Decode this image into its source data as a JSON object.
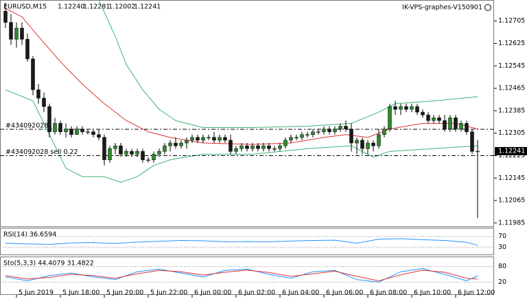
{
  "chart_data": {
    "type": "candlestick",
    "symbol": "EURUSD,M15",
    "header_ohlc": [
      "1.12240",
      "1.12281",
      "1.12002",
      "1.12241"
    ],
    "ea_name": "IK-VPS-graphes-V150901",
    "ylim": [
      1.1197,
      1.1278
    ],
    "yticks": [
      1.12705,
      1.12625,
      1.12545,
      1.12465,
      1.12385,
      1.12305,
      1.12225,
      1.12145,
      1.12065,
      1.11985
    ],
    "bid": 1.12241,
    "bull_color": "#2e8b2e",
    "bear_color": "#1a1a1a",
    "xticks": [
      {
        "value": 2,
        "label": "5 Jun 2019"
      },
      {
        "value": 10,
        "label": "5 Jun 18:00"
      },
      {
        "value": 18,
        "label": "5 Jun 20:00"
      },
      {
        "value": 26,
        "label": "5 Jun 22:00"
      },
      {
        "value": 34,
        "label": "6 Jun 00:00"
      },
      {
        "value": 42,
        "label": "6 Jun 02:00"
      },
      {
        "value": 50,
        "label": "6 Jun 04:00"
      },
      {
        "value": 58,
        "label": "6 Jun 06:00"
      },
      {
        "value": 66,
        "label": "6 Jun 08:00"
      },
      {
        "value": 74,
        "label": "6 Jun 10:00"
      },
      {
        "value": 82,
        "label": "6 Jun 12:00"
      }
    ],
    "order_lines": [
      {
        "label": "#434092028",
        "price": 1.12319
      },
      {
        "label": "#434092028 sell 0.22",
        "price": 1.12225
      }
    ],
    "candles": [
      [
        1.1274,
        1.1277,
        1.1268,
        1.127
      ],
      [
        1.127,
        1.1273,
        1.1262,
        1.1264
      ],
      [
        1.1264,
        1.127,
        1.1261,
        1.1268
      ],
      [
        1.1268,
        1.127,
        1.1262,
        1.1264
      ],
      [
        1.1264,
        1.1266,
        1.1256,
        1.1257
      ],
      [
        1.1257,
        1.1258,
        1.1244,
        1.1246
      ],
      [
        1.1246,
        1.1248,
        1.1241,
        1.1243
      ],
      [
        1.1243,
        1.1245,
        1.1238,
        1.124
      ],
      [
        1.124,
        1.1241,
        1.1229,
        1.1231
      ],
      [
        1.1231,
        1.1236,
        1.123,
        1.1234
      ],
      [
        1.1234,
        1.1235,
        1.123,
        1.1231
      ],
      [
        1.1231,
        1.1234,
        1.1229,
        1.1232
      ],
      [
        1.1232,
        1.1233,
        1.1229,
        1.123
      ],
      [
        1.123,
        1.1233,
        1.123,
        1.1232
      ],
      [
        1.1232,
        1.1233,
        1.123,
        1.1231
      ],
      [
        1.1231,
        1.1232,
        1.123,
        1.1231
      ],
      [
        1.1231,
        1.1232,
        1.1229,
        1.123
      ],
      [
        1.123,
        1.1232,
        1.1228,
        1.1229
      ],
      [
        1.1229,
        1.123,
        1.1219,
        1.1221
      ],
      [
        1.1221,
        1.1226,
        1.122,
        1.1225
      ],
      [
        1.1225,
        1.1227,
        1.1223,
        1.1226
      ],
      [
        1.1226,
        1.1227,
        1.1222,
        1.1223
      ],
      [
        1.1223,
        1.1225,
        1.1222,
        1.1224
      ],
      [
        1.1224,
        1.1225,
        1.1222,
        1.1223
      ],
      [
        1.1223,
        1.1225,
        1.1222,
        1.1224
      ],
      [
        1.1224,
        1.1225,
        1.122,
        1.1221
      ],
      [
        1.1221,
        1.1222,
        1.122,
        1.1221
      ],
      [
        1.1221,
        1.1224,
        1.122,
        1.1223
      ],
      [
        1.1223,
        1.1225,
        1.1222,
        1.1224
      ],
      [
        1.1224,
        1.1227,
        1.1223,
        1.1226
      ],
      [
        1.1226,
        1.1228,
        1.1224,
        1.1227
      ],
      [
        1.1227,
        1.1229,
        1.1225,
        1.1226
      ],
      [
        1.1226,
        1.1228,
        1.1225,
        1.1227
      ],
      [
        1.1227,
        1.1229,
        1.1225,
        1.1228
      ],
      [
        1.1228,
        1.123,
        1.1227,
        1.1229
      ],
      [
        1.1229,
        1.123,
        1.1227,
        1.1228
      ],
      [
        1.1228,
        1.123,
        1.1227,
        1.1229
      ],
      [
        1.1229,
        1.123,
        1.1228,
        1.1229
      ],
      [
        1.1229,
        1.1231,
        1.1227,
        1.1228
      ],
      [
        1.1228,
        1.123,
        1.1227,
        1.1229
      ],
      [
        1.1229,
        1.123,
        1.1227,
        1.1228
      ],
      [
        1.1228,
        1.123,
        1.1223,
        1.1224
      ],
      [
        1.1224,
        1.1226,
        1.1223,
        1.1225
      ],
      [
        1.1225,
        1.1227,
        1.1224,
        1.1226
      ],
      [
        1.1226,
        1.1227,
        1.1224,
        1.1225
      ],
      [
        1.1225,
        1.1227,
        1.1224,
        1.1226
      ],
      [
        1.1226,
        1.1227,
        1.1224,
        1.1225
      ],
      [
        1.1225,
        1.1227,
        1.1224,
        1.1226
      ],
      [
        1.1226,
        1.1227,
        1.1224,
        1.1225
      ],
      [
        1.1225,
        1.1226,
        1.1224,
        1.1225
      ],
      [
        1.1225,
        1.1227,
        1.1224,
        1.1226
      ],
      [
        1.1226,
        1.1229,
        1.1225,
        1.1228
      ],
      [
        1.1228,
        1.123,
        1.1227,
        1.1229
      ],
      [
        1.1229,
        1.123,
        1.1228,
        1.1229
      ],
      [
        1.1229,
        1.1231,
        1.1228,
        1.123
      ],
      [
        1.123,
        1.1231,
        1.1229,
        1.123
      ],
      [
        1.123,
        1.1232,
        1.1229,
        1.1231
      ],
      [
        1.1231,
        1.1232,
        1.123,
        1.1231
      ],
      [
        1.1231,
        1.1233,
        1.123,
        1.1232
      ],
      [
        1.1232,
        1.1233,
        1.123,
        1.1231
      ],
      [
        1.1231,
        1.1233,
        1.123,
        1.1232
      ],
      [
        1.1232,
        1.1234,
        1.1231,
        1.1233
      ],
      [
        1.1233,
        1.1235,
        1.1231,
        1.1232
      ],
      [
        1.1232,
        1.1234,
        1.1224,
        1.1227
      ],
      [
        1.1227,
        1.1229,
        1.1223,
        1.1228
      ],
      [
        1.1228,
        1.1229,
        1.1223,
        1.1225
      ],
      [
        1.1225,
        1.1228,
        1.1223,
        1.1227
      ],
      [
        1.1227,
        1.1228,
        1.1224,
        1.1226
      ],
      [
        1.1226,
        1.1232,
        1.1225,
        1.123
      ],
      [
        1.123,
        1.1233,
        1.1229,
        1.1232
      ],
      [
        1.1232,
        1.1241,
        1.1231,
        1.124
      ],
      [
        1.124,
        1.1242,
        1.1237,
        1.1239
      ],
      [
        1.1239,
        1.1241,
        1.1237,
        1.124
      ],
      [
        1.124,
        1.1241,
        1.1238,
        1.1239
      ],
      [
        1.1239,
        1.1241,
        1.1238,
        1.124
      ],
      [
        1.124,
        1.1241,
        1.1237,
        1.1238
      ],
      [
        1.1238,
        1.1239,
        1.1236,
        1.1237
      ],
      [
        1.1237,
        1.1238,
        1.1234,
        1.1235
      ],
      [
        1.1235,
        1.1237,
        1.1234,
        1.1236
      ],
      [
        1.1236,
        1.1237,
        1.1234,
        1.1235
      ],
      [
        1.1235,
        1.1237,
        1.1231,
        1.1232
      ],
      [
        1.1232,
        1.1237,
        1.1231,
        1.1236
      ],
      [
        1.1236,
        1.1237,
        1.1231,
        1.1232
      ],
      [
        1.1232,
        1.1235,
        1.1231,
        1.1234
      ],
      [
        1.1234,
        1.1235,
        1.123,
        1.1231
      ],
      [
        1.1231,
        1.1232,
        1.1223,
        1.1224
      ],
      [
        1.1224,
        1.12281,
        1.12002,
        1.12241
      ]
    ],
    "bands": [
      {
        "color": "#3cb371",
        "x": [
          17,
          20,
          22,
          25,
          28,
          31,
          36,
          45,
          55,
          63,
          68,
          71,
          78,
          86
        ],
        "values": [
          1.1278,
          1.1265,
          1.1255,
          1.1246,
          1.1239,
          1.1235,
          1.12325,
          1.12325,
          1.1233,
          1.1234,
          1.1238,
          1.1241,
          1.1242,
          1.12435
        ]
      },
      {
        "color": "#e03030",
        "x": [
          0,
          3,
          6,
          10,
          14,
          18,
          22,
          26,
          30,
          36,
          45,
          52,
          58,
          62,
          66,
          70,
          76,
          82,
          86
        ],
        "values": [
          1.1275,
          1.1272,
          1.1265,
          1.1256,
          1.1248,
          1.1241,
          1.1235,
          1.1231,
          1.1229,
          1.1227,
          1.12265,
          1.1227,
          1.1229,
          1.123,
          1.1229,
          1.1232,
          1.1234,
          1.1234,
          1.1232
        ]
      },
      {
        "color": "#3cb371",
        "x": [
          0,
          5,
          8,
          11,
          14,
          18,
          21,
          24,
          27,
          30,
          36,
          45,
          55,
          63,
          67,
          70,
          78,
          86
        ],
        "values": [
          1.1246,
          1.1242,
          1.123,
          1.1218,
          1.1215,
          1.1215,
          1.1213,
          1.1215,
          1.1219,
          1.1221,
          1.1223,
          1.1223,
          1.1225,
          1.1226,
          1.1222,
          1.1224,
          1.1225,
          1.1226
        ]
      }
    ],
    "rsi": {
      "title": "RSI(14) 36.6594",
      "ylim": [
        0,
        100
      ],
      "yticks": [
        70,
        30
      ],
      "color": "#1e90ff",
      "x": [
        0,
        4,
        8,
        12,
        16,
        20,
        24,
        28,
        32,
        36,
        40,
        44,
        48,
        52,
        56,
        60,
        64,
        68,
        72,
        76,
        80,
        84,
        86
      ],
      "values": [
        45,
        42,
        40,
        46,
        47,
        44,
        49,
        52,
        55,
        54,
        50,
        51,
        50,
        53,
        55,
        56,
        45,
        60,
        62,
        58,
        55,
        48,
        36.6594
      ]
    },
    "stoch": {
      "title": "Sto(5,3,3) 44.4079 31.4822",
      "ylim": [
        0,
        100
      ],
      "yticks": [
        80,
        20
      ],
      "x": [
        0,
        4,
        8,
        12,
        16,
        20,
        24,
        28,
        32,
        36,
        40,
        44,
        48,
        52,
        56,
        60,
        64,
        68,
        72,
        76,
        80,
        84,
        86
      ],
      "series": [
        {
          "color": "#1e90ff",
          "values": [
            40,
            25,
            45,
            55,
            40,
            30,
            60,
            70,
            55,
            40,
            65,
            70,
            50,
            35,
            60,
            65,
            30,
            20,
            60,
            72,
            50,
            25,
            44.4079
          ]
        },
        {
          "color": "#e03030",
          "values": [
            45,
            32,
            38,
            50,
            45,
            35,
            52,
            65,
            60,
            47,
            58,
            66,
            57,
            42,
            52,
            62,
            42,
            25,
            48,
            66,
            58,
            35,
            31.4822
          ]
        }
      ]
    }
  }
}
